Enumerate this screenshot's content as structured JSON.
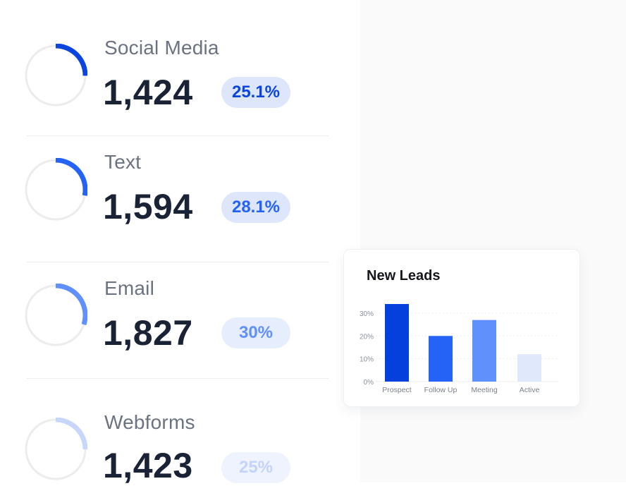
{
  "colors": {
    "dark_blue": "#0540dd",
    "blue": "#2563f7",
    "mid_blue": "#6090fb",
    "light_blue": "#c7d6fb",
    "pale_blue": "#e0e8fb",
    "ring_track": "#ececec",
    "value_text": "#1a2236",
    "label_text": "#6b7280"
  },
  "sources": [
    {
      "label": "Social Media",
      "value": "1,424",
      "percent": "25.1%",
      "fraction": 0.251,
      "ring_color": "#0b45de",
      "pill_bg": "#dde6fb",
      "pill_text": "#0b45de"
    },
    {
      "label": "Text",
      "value": "1,594",
      "percent": "28.1%",
      "fraction": 0.281,
      "ring_color": "#2563f7",
      "pill_bg": "#dde6fb",
      "pill_text": "#2563f7"
    },
    {
      "label": "Email",
      "value": "1,827",
      "percent": "30%",
      "fraction": 0.3,
      "ring_color": "#6090fb",
      "pill_bg": "#e6edfc",
      "pill_text": "#6090fb"
    },
    {
      "label": "Webforms",
      "value": "1,423",
      "percent": "25%",
      "fraction": 0.25,
      "ring_color": "#c7d6fb",
      "pill_bg": "#eef3fd",
      "pill_text": "#c3d3fa"
    }
  ],
  "card": {
    "title": "New Leads"
  },
  "chart_data": {
    "type": "bar",
    "title": "New Leads",
    "categories": [
      "Prospect",
      "Follow Up",
      "Meeting",
      "Active"
    ],
    "values": [
      34,
      20,
      27,
      12
    ],
    "colors": [
      "#0540dd",
      "#2563f7",
      "#6090fb",
      "#e0e8fb"
    ],
    "ytick_labels": [
      "0%",
      "10%",
      "20%",
      "30%"
    ],
    "yticks": [
      0,
      10,
      20,
      30
    ],
    "ylim": [
      0,
      34
    ],
    "grid": true
  }
}
